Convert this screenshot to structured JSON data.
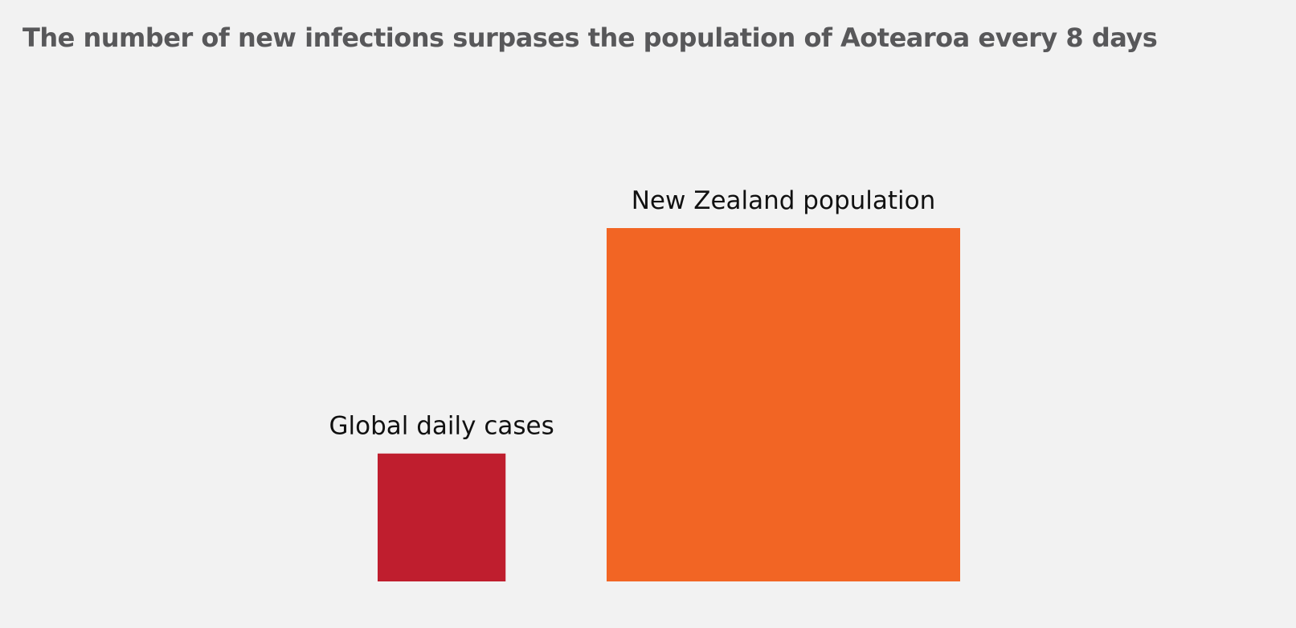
{
  "chart_data": {
    "type": "area",
    "title": "The number of new infections surpases the population of Aotearoa every 8 days",
    "items": [
      {
        "name": "Global daily cases",
        "relative_area": 0.131,
        "color": "#bf1e2e"
      },
      {
        "name": "New Zealand population",
        "relative_area": 1.0,
        "color": "#f26524"
      }
    ],
    "legend": "none",
    "grid": false
  }
}
